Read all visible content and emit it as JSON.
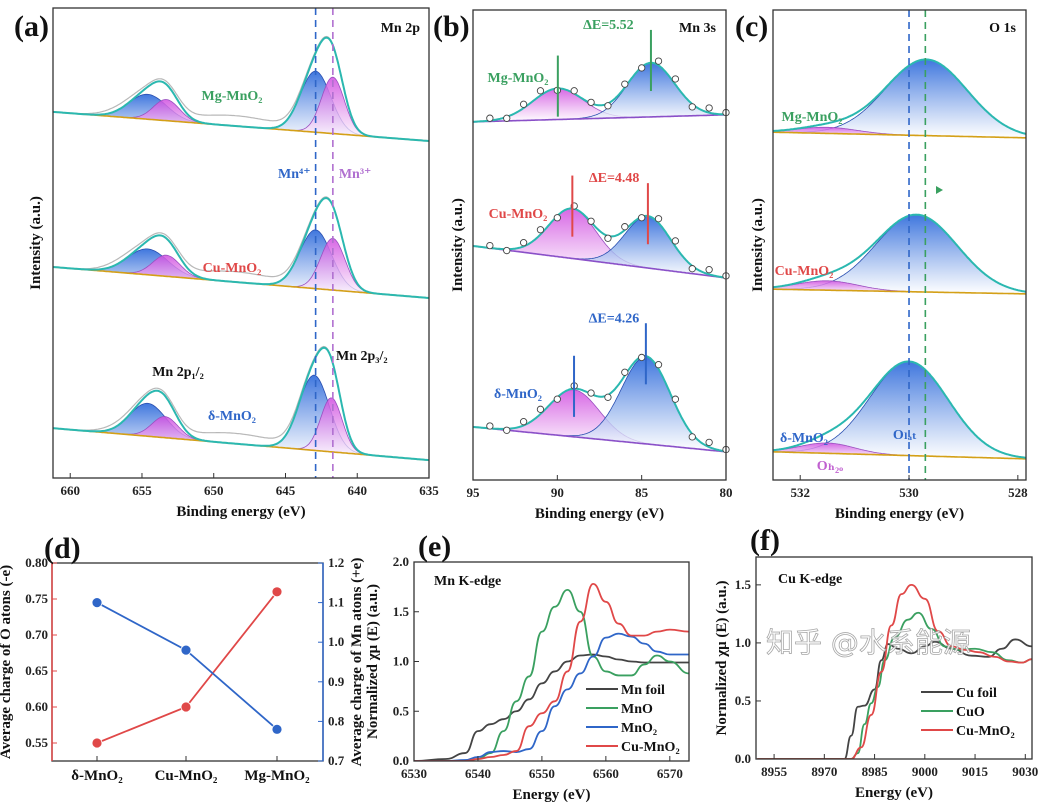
{
  "watermark": "知乎 @水系能源",
  "colors": {
    "mn4_blue": "#1e5fd8",
    "mn3_pink": "#d04de0",
    "envelope": "#2bb8b0",
    "raw": "#b8b8b8",
    "baseline_orange": "#d4a017",
    "baseline_purple": "#8a50c8",
    "green": "#3aa060",
    "red": "#e04848",
    "blue": "#2f66c8",
    "dark": "#444444"
  },
  "chart_data": [
    {
      "panel": "(a)",
      "type": "line",
      "title": "Mn 2p",
      "xlabel": "Binding energy (eV)",
      "ylabel": "Intensity (a.u.)",
      "xlim": [
        661.2,
        635
      ],
      "xticks": [
        "660",
        "655",
        "650",
        "645",
        "640",
        "635"
      ],
      "reference_lines": [
        {
          "label": "Mn⁴⁺",
          "x": 642.9,
          "color": "#2f66c8"
        },
        {
          "label": "Mn³⁺",
          "x": 641.7,
          "color": "#b070d0"
        }
      ],
      "annotations": {
        "p12": "Mn 2p₁/₂",
        "p32": "Mn 2p₃/₂"
      },
      "series": [
        {
          "name": "Mg-MnO₂",
          "color": "#3aa060",
          "baseline": [
            7.79,
            7.17
          ],
          "peaks": [
            {
              "label": "Mn4+",
              "center": 642.9,
              "height": 1.3,
              "sigma": 1.05
            },
            {
              "label": "Mn3+",
              "center": 641.7,
              "height": 1.2,
              "sigma": 0.8
            },
            {
              "label": "Mn4+",
              "center": 654.6,
              "height": 0.53,
              "sigma": 1.3
            },
            {
              "label": "Mn3+",
              "center": 653.3,
              "height": 0.45,
              "sigma": 0.9
            }
          ]
        },
        {
          "name": "Cu-MnO₂",
          "color": "#e04848",
          "baseline": [
            4.49,
            3.83
          ],
          "peaks": [
            {
              "label": "Mn4+",
              "center": 642.9,
              "height": 1.25,
              "sigma": 1.1
            },
            {
              "label": "Mn3+",
              "center": 641.7,
              "height": 1.1,
              "sigma": 0.85
            },
            {
              "label": "Mn4+",
              "center": 654.6,
              "height": 0.55,
              "sigma": 1.4
            },
            {
              "label": "Mn3+",
              "center": 653.3,
              "height": 0.45,
              "sigma": 0.95
            }
          ]
        },
        {
          "name": "δ-MnO₂",
          "color": "#2f66c8",
          "baseline": [
            1.06,
            0.38
          ],
          "peaks": [
            {
              "label": "Mn4+",
              "center": 643.0,
              "height": 1.6,
              "sigma": 1.05
            },
            {
              "label": "Mn3+",
              "center": 641.8,
              "height": 1.15,
              "sigma": 0.75
            },
            {
              "label": "Mn4+",
              "center": 654.6,
              "height": 0.7,
              "sigma": 1.25
            },
            {
              "label": "Mn3+",
              "center": 653.4,
              "height": 0.45,
              "sigma": 0.9
            }
          ]
        }
      ]
    },
    {
      "panel": "(b)",
      "type": "line",
      "title": "Mn 3s",
      "xlabel": "Binding energy (eV)",
      "ylabel": "Intensity (a.u.)",
      "xlim": [
        95,
        80
      ],
      "xticks": [
        "95",
        "90",
        "85",
        "80"
      ],
      "series": [
        {
          "name": "Mg-MnO₂",
          "color": "#3aa060",
          "delta_e": "ΔE=5.52",
          "split": [
            89.97,
            84.45
          ],
          "baseline": [
            7.62,
            7.77
          ],
          "peaks": [
            {
              "center": 89.97,
              "height": 0.66,
              "sigma": 1.5
            },
            {
              "center": 84.45,
              "height": 1.15,
              "sigma": 1.4
            }
          ]
        },
        {
          "name": "Cu-MnO₂",
          "color": "#e04848",
          "delta_e": "ΔE=4.48",
          "split": [
            89.11,
            84.63
          ],
          "baseline": [
            4.98,
            4.3
          ],
          "peaks": [
            {
              "center": 89.11,
              "height": 1.06,
              "sigma": 1.4
            },
            {
              "center": 84.63,
              "height": 1.1,
              "sigma": 1.35
            }
          ]
        },
        {
          "name": "δ-MnO₂",
          "color": "#2f66c8",
          "delta_e": "ΔE=4.26",
          "split": [
            89.01,
            84.75
          ],
          "baseline": [
            1.13,
            0.6
          ],
          "peaks": [
            {
              "center": 89.01,
              "height": 1.0,
              "sigma": 1.5
            },
            {
              "center": 84.75,
              "height": 1.85,
              "sigma": 1.45
            }
          ]
        }
      ]
    },
    {
      "panel": "(c)",
      "type": "line",
      "title": "O 1s",
      "xlabel": "Binding energy (eV)",
      "ylabel": "Intensity (a.u.)",
      "xlim": [
        532.5,
        527.85
      ],
      "xticks": [
        "532",
        "530",
        "528"
      ],
      "reference_lines": [
        {
          "x": 530.0,
          "color": "#2f66c8"
        },
        {
          "x": 529.7,
          "color": "#3aa060"
        }
      ],
      "annotations": {
        "olat": "Oₗₐₜ",
        "oh2o": "Oₕ₂ₒ"
      },
      "series": [
        {
          "name": "Mg-MnO₂",
          "color": "#3aa060",
          "baseline": [
            7.4,
            7.28
          ],
          "peaks": [
            {
              "label": "O_lat",
              "center": 529.68,
              "height": 1.62,
              "sigma": 0.75
            },
            {
              "label": "O_H2O",
              "center": 531.5,
              "height": 0.13,
              "sigma": 0.55
            }
          ]
        },
        {
          "name": "Cu-MnO₂",
          "color": "#e04848",
          "baseline": [
            4.06,
            3.96
          ],
          "peaks": [
            {
              "label": "O_lat",
              "center": 529.86,
              "height": 1.64,
              "sigma": 0.75
            },
            {
              "label": "O_H2O",
              "center": 531.5,
              "height": 0.2,
              "sigma": 0.55
            }
          ]
        },
        {
          "name": "δ-MnO₂",
          "color": "#2f66c8",
          "baseline": [
            0.6,
            0.45
          ],
          "peaks": [
            {
              "label": "O_lat",
              "center": 530.0,
              "height": 2.0,
              "sigma": 0.72
            },
            {
              "label": "O_H2O",
              "center": 531.5,
              "height": 0.22,
              "sigma": 0.5
            }
          ]
        }
      ]
    },
    {
      "panel": "(d)",
      "type": "line",
      "categories": [
        "δ-MnO₂",
        "Cu-MnO₂",
        "Mg-MnO₂"
      ],
      "category_colors": [
        "#2f66c8",
        "#e04848",
        "#3aa060"
      ],
      "ylabel_left": "Average charge of O atons (-e)",
      "ylabel_right": "Average charge of Mn atons (+e)",
      "ylim_left": [
        0.525,
        0.8
      ],
      "yticks_left": [
        "0.55",
        "0.60",
        "0.65",
        "0.70",
        "0.75",
        "0.80"
      ],
      "ylim_right": [
        0.7,
        1.2
      ],
      "yticks_right": [
        "0.7",
        "0.8",
        "0.9",
        "1.0",
        "1.1",
        "1.2"
      ],
      "series": [
        {
          "axis": "left",
          "color": "#e04848",
          "values": [
            0.55,
            0.6,
            0.76
          ]
        },
        {
          "axis": "right",
          "color": "#2f66c8",
          "values": [
            1.1,
            0.98,
            0.78
          ]
        }
      ]
    },
    {
      "panel": "(e)",
      "type": "line",
      "title": "Mn K-edge",
      "xlabel": "Energy (eV)",
      "ylabel": "Normalized χμ (E) (a.u.)",
      "xlim": [
        6530,
        6573
      ],
      "xticks": [
        "6530",
        "6540",
        "6550",
        "6560",
        "6570"
      ],
      "ylim": [
        0,
        2.0
      ],
      "yticks": [
        "0.0",
        "0.5",
        "1.0",
        "1.5",
        "2.0"
      ],
      "legend": "bottom-right",
      "x": [
        6530,
        6535,
        6538,
        6540,
        6542,
        6544,
        6546,
        6548,
        6550,
        6552,
        6554,
        6556,
        6558,
        6560,
        6562,
        6564,
        6566,
        6568,
        6570,
        6573
      ],
      "series": [
        {
          "name": "Mn foil",
          "color": "#444444",
          "values": [
            0,
            0.02,
            0.08,
            0.3,
            0.37,
            0.42,
            0.5,
            0.62,
            0.78,
            0.9,
            1.0,
            1.06,
            1.07,
            1.05,
            1.02,
            1.0,
            0.99,
            0.99,
            0.99,
            0.99
          ]
        },
        {
          "name": "MnO",
          "color": "#3aa060",
          "values": [
            0,
            0,
            0,
            0.02,
            0.08,
            0.3,
            0.6,
            0.85,
            1.3,
            1.55,
            1.72,
            1.5,
            1.05,
            0.9,
            0.86,
            0.86,
            0.97,
            1.06,
            1.0,
            0.88
          ]
        },
        {
          "name": "MnO₂",
          "color": "#2f66c8",
          "values": [
            0,
            0,
            0.01,
            0.04,
            0.09,
            0.1,
            0.09,
            0.12,
            0.3,
            0.55,
            0.72,
            0.88,
            1.05,
            1.24,
            1.28,
            1.25,
            1.18,
            1.1,
            1.07,
            1.07
          ]
        },
        {
          "name": "Cu-MnO₂",
          "color": "#e04848",
          "values": [
            0,
            0,
            0,
            0.02,
            0.04,
            0.06,
            0.1,
            0.35,
            0.48,
            0.6,
            0.9,
            1.4,
            1.78,
            1.6,
            1.38,
            1.26,
            1.26,
            1.3,
            1.32,
            1.3
          ]
        }
      ]
    },
    {
      "panel": "(f)",
      "type": "line",
      "title": "Cu K-edge",
      "xlabel": "Energy (eV)",
      "ylabel": "Normalized χμ (E) (a.u.)",
      "xlim": [
        8949.6,
        9032
      ],
      "xticks": [
        "8955",
        "8970",
        "8985",
        "9000",
        "9015",
        "9030"
      ],
      "ylim": [
        0,
        1.74
      ],
      "yticks": [
        "0.0",
        "0.5",
        "1.0",
        "1.5"
      ],
      "legend": "bottom-right",
      "series": [
        {
          "name": "Cu foil",
          "color": "#444444",
          "points": [
            [
              8950,
              0
            ],
            [
              8976,
              0
            ],
            [
              8978,
              0.2
            ],
            [
              8980,
              0.45
            ],
            [
              8982,
              0.46
            ],
            [
              8985,
              0.6
            ],
            [
              8987,
              0.85
            ],
            [
              8989,
              0.99
            ],
            [
              8992,
              0.95
            ],
            [
              8996,
              0.91
            ],
            [
              9000,
              0.97
            ],
            [
              9003,
              1.01
            ],
            [
              9008,
              0.95
            ],
            [
              9014,
              0.89
            ],
            [
              9019,
              0.88
            ],
            [
              9023,
              0.95
            ],
            [
              9027,
              1.03
            ],
            [
              9032,
              0.97
            ]
          ]
        },
        {
          "name": "CuO",
          "color": "#3aa060",
          "points": [
            [
              8950,
              0
            ],
            [
              8978,
              0
            ],
            [
              8980,
              0.05
            ],
            [
              8982,
              0.3
            ],
            [
              8984,
              0.48
            ],
            [
              8986,
              0.62
            ],
            [
              8988,
              0.85
            ],
            [
              8991,
              1.05
            ],
            [
              8995,
              1.2
            ],
            [
              8998,
              1.26
            ],
            [
              9002,
              1.12
            ],
            [
              9006,
              0.97
            ],
            [
              9010,
              0.94
            ],
            [
              9015,
              0.95
            ],
            [
              9020,
              0.92
            ],
            [
              9025,
              0.85
            ],
            [
              9029,
              0.83
            ],
            [
              9032,
              0.86
            ]
          ]
        },
        {
          "name": "Cu-MnO₂",
          "color": "#e04848",
          "points": [
            [
              8950,
              0
            ],
            [
              8978,
              0
            ],
            [
              8981,
              0.1
            ],
            [
              8984,
              0.38
            ],
            [
              8987,
              0.75
            ],
            [
              8990,
              1.15
            ],
            [
              8993,
              1.42
            ],
            [
              8996,
              1.5
            ],
            [
              9000,
              1.38
            ],
            [
              9004,
              1.1
            ],
            [
              9008,
              0.97
            ],
            [
              9012,
              0.94
            ],
            [
              9016,
              0.92
            ],
            [
              9021,
              0.88
            ],
            [
              9025,
              0.84
            ],
            [
              9029,
              0.83
            ],
            [
              9032,
              0.86
            ]
          ]
        }
      ]
    }
  ]
}
